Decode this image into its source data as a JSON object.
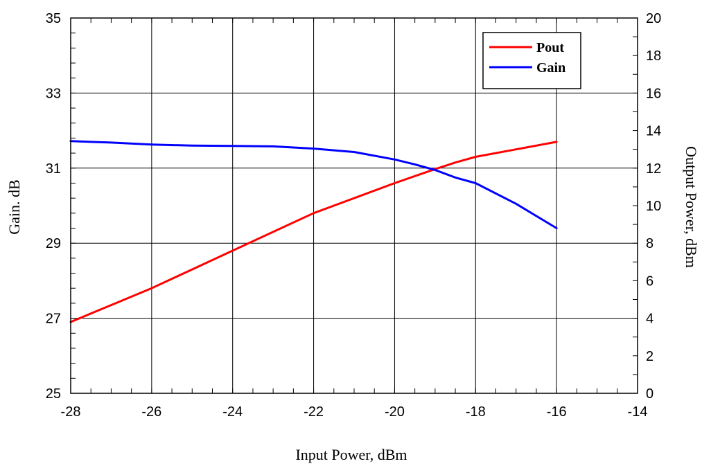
{
  "chart_data": {
    "type": "line",
    "xlabel": "Input Power, dBm",
    "ylabel_left": "Gain. dB",
    "ylabel_right": "Output Power, dBm",
    "xlim": [
      -28,
      -14
    ],
    "ylim_left": [
      25,
      35
    ],
    "ylim_right": [
      0,
      20
    ],
    "x_ticks": [
      "-28",
      "-26",
      "-24",
      "-22",
      "-20",
      "-18",
      "-16",
      "-14"
    ],
    "y_left_ticks": [
      "25",
      "27",
      "29",
      "31",
      "33",
      "35"
    ],
    "y_right_ticks": [
      "0",
      "2",
      "4",
      "6",
      "8",
      "10",
      "12",
      "14",
      "16",
      "18",
      "20"
    ],
    "grid": true,
    "legend_position": "top-right",
    "series": [
      {
        "name": "Pout",
        "axis": "right",
        "color": "#ff0000",
        "x": [
          -28,
          -27,
          -26,
          -25,
          -24,
          -23,
          -22,
          -21,
          -20,
          -19,
          -18.5,
          -18,
          -17,
          -16
        ],
        "y": [
          3.8,
          4.7,
          5.6,
          6.6,
          7.6,
          8.6,
          9.6,
          10.4,
          11.2,
          11.95,
          12.3,
          12.6,
          13.0,
          13.4
        ]
      },
      {
        "name": "Gain",
        "axis": "left",
        "color": "#0000ff",
        "x": [
          -28,
          -27,
          -26,
          -25,
          -24,
          -23,
          -22,
          -21,
          -20,
          -19.5,
          -19,
          -18.5,
          -18,
          -17,
          -16
        ],
        "y": [
          31.72,
          31.68,
          31.63,
          31.6,
          31.59,
          31.58,
          31.52,
          31.43,
          31.23,
          31.1,
          30.95,
          30.75,
          30.6,
          30.05,
          29.4
        ]
      }
    ]
  }
}
